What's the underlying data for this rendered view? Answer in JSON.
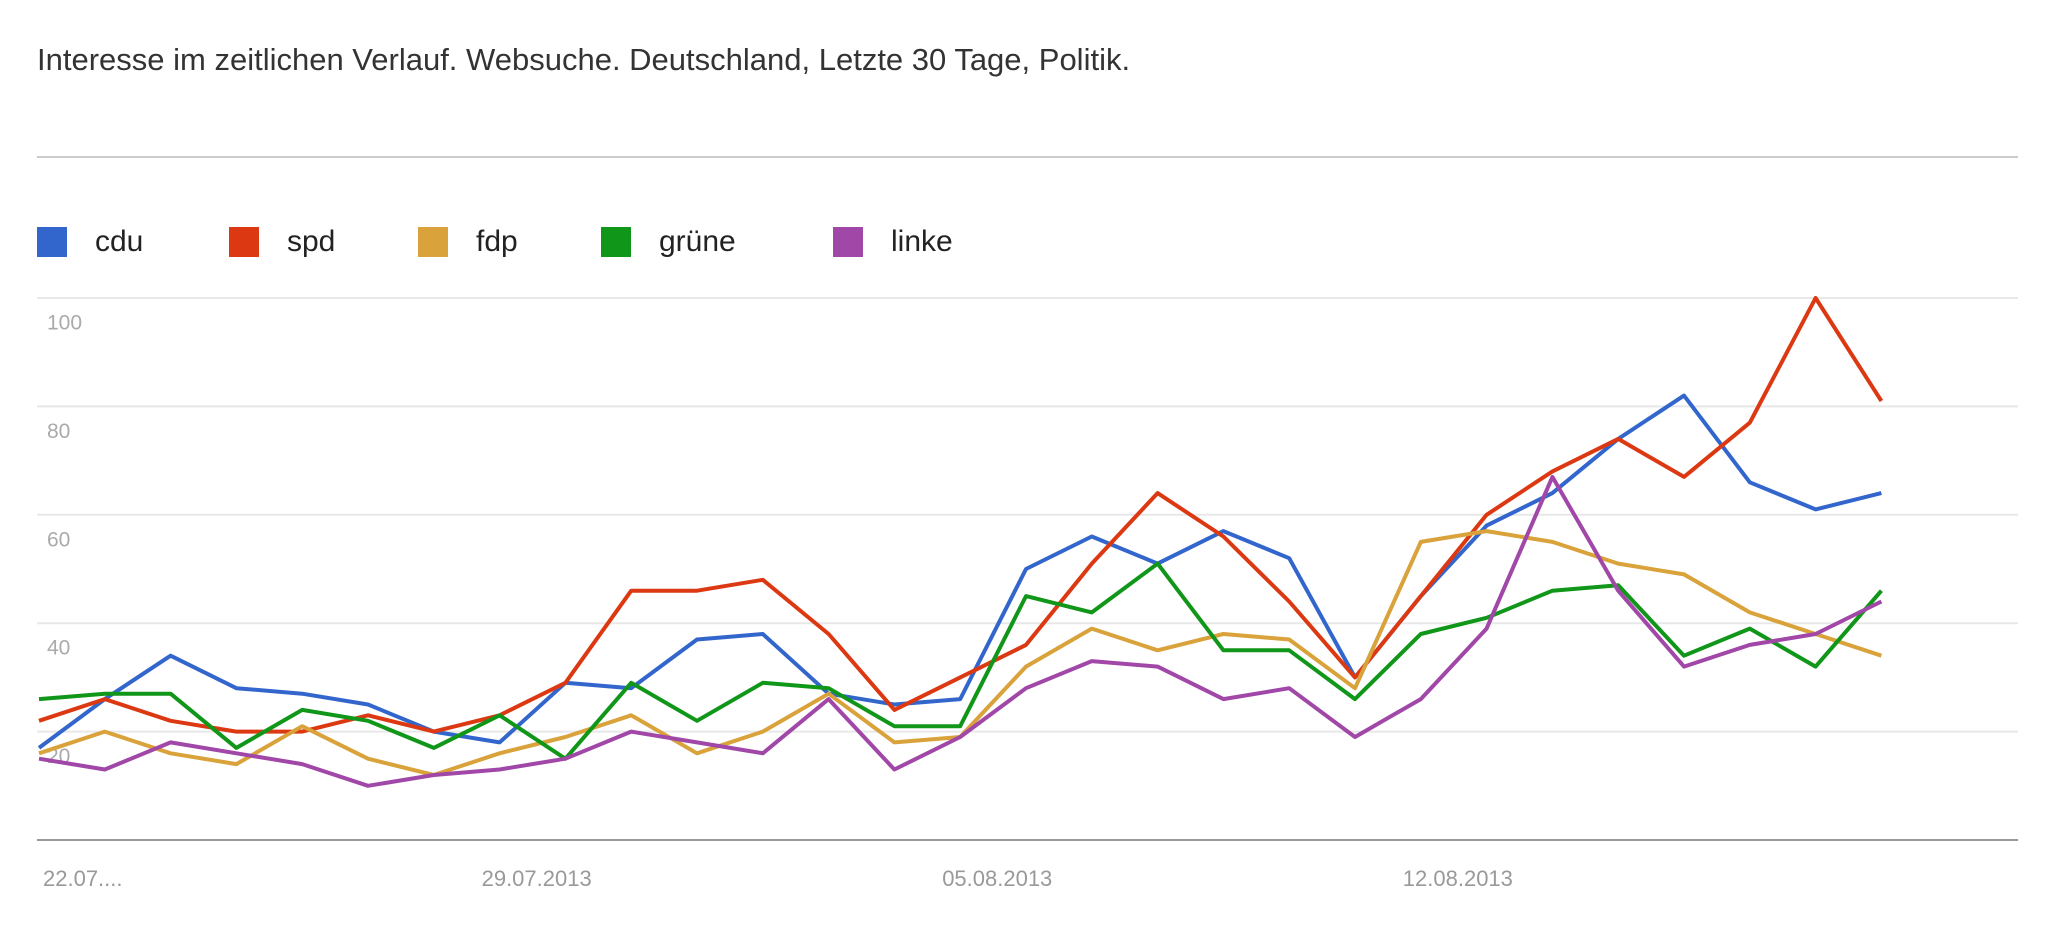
{
  "chart_data": {
    "type": "line",
    "title": "Interesse im zeitlichen Verlauf. Websuche. Deutschland, Letzte 30 Tage, Politik.",
    "categories": [
      "22.07....",
      null,
      null,
      null,
      null,
      null,
      null,
      "29.07.2013",
      null,
      null,
      null,
      null,
      null,
      null,
      "05.08.2013",
      null,
      null,
      null,
      null,
      null,
      null,
      "12.08.2013",
      null,
      null,
      null,
      null,
      null,
      null,
      null
    ],
    "series": [
      {
        "name": "cdu",
        "color": "#3366cc",
        "values": [
          17,
          26,
          34,
          28,
          27,
          25,
          20,
          18,
          29,
          28,
          37,
          38,
          27,
          25,
          26,
          50,
          56,
          51,
          57,
          52,
          30,
          45,
          58,
          64,
          74,
          82,
          66,
          61,
          64
        ]
      },
      {
        "name": "spd",
        "color": "#dc3912",
        "values": [
          22,
          26,
          22,
          20,
          20,
          23,
          20,
          23,
          29,
          46,
          46,
          48,
          38,
          24,
          30,
          36,
          51,
          64,
          56,
          44,
          30,
          45,
          60,
          68,
          74,
          67,
          77,
          100,
          81
        ]
      },
      {
        "name": "fdp",
        "color": "#d9a23a",
        "values": [
          16,
          20,
          16,
          14,
          21,
          15,
          12,
          16,
          19,
          23,
          16,
          20,
          27,
          18,
          19,
          32,
          39,
          35,
          38,
          37,
          28,
          55,
          57,
          55,
          51,
          49,
          42,
          38,
          34
        ]
      },
      {
        "name": "grüne",
        "color": "#109618",
        "values": [
          26,
          27,
          27,
          17,
          24,
          22,
          17,
          23,
          15,
          29,
          22,
          29,
          28,
          21,
          21,
          45,
          42,
          51,
          35,
          35,
          26,
          38,
          41,
          46,
          47,
          34,
          39,
          32,
          46
        ]
      },
      {
        "name": "linke",
        "color": "#a047a8",
        "values": [
          15,
          13,
          18,
          16,
          14,
          10,
          12,
          13,
          15,
          20,
          18,
          16,
          26,
          13,
          19,
          28,
          33,
          32,
          26,
          28,
          19,
          26,
          39,
          67,
          46,
          32,
          36,
          38,
          44
        ]
      }
    ],
    "ylim": [
      0,
      100
    ],
    "yticks": [
      20,
      40,
      60,
      80,
      100
    ],
    "grid": true
  }
}
